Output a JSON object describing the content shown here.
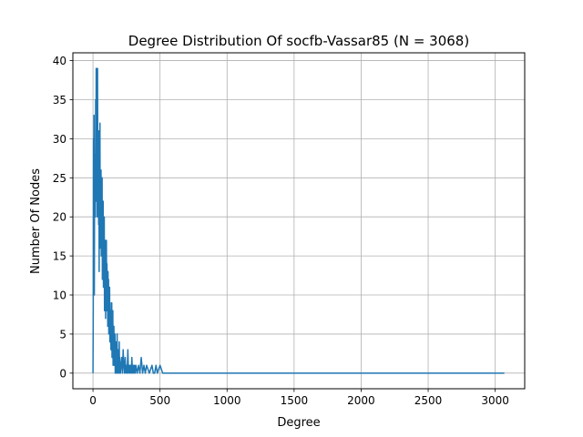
{
  "chart_data": {
    "type": "line",
    "title": "Degree Distribution Of socfb-Vassar85 (N = 3068)",
    "xlabel": "Degree",
    "ylabel": "Number Of Nodes",
    "xlim": [
      -150,
      3220
    ],
    "ylim": [
      -2,
      41
    ],
    "xticks": [
      0,
      500,
      1000,
      1500,
      2000,
      2500,
      3000
    ],
    "yticks": [
      0,
      5,
      10,
      15,
      20,
      25,
      30,
      35,
      40
    ],
    "grid": true,
    "line_color": "#1f77b4",
    "series": [
      {
        "x": [
          0,
          2,
          4,
          6,
          8,
          10,
          12,
          14,
          16,
          18,
          20,
          22,
          24,
          26,
          28,
          30,
          32,
          34,
          36,
          38,
          40,
          42,
          44,
          46,
          48,
          50,
          52,
          54,
          56,
          58,
          60,
          62,
          64,
          66,
          68,
          70,
          72,
          74,
          76,
          78,
          80,
          82,
          84,
          86,
          88,
          90,
          92,
          94,
          96,
          98,
          100,
          102,
          104,
          106,
          108,
          110,
          112,
          114,
          116,
          118,
          120,
          122,
          124,
          126,
          128,
          130,
          132,
          134,
          136,
          138,
          140,
          142,
          144,
          146,
          148,
          150,
          152,
          154,
          156,
          158,
          160,
          162,
          164,
          166,
          168,
          170,
          172,
          174,
          176,
          178,
          180,
          182,
          184,
          186,
          188,
          190,
          192,
          194,
          196,
          198,
          200,
          205,
          210,
          215,
          220,
          225,
          230,
          235,
          240,
          245,
          250,
          255,
          260,
          265,
          270,
          275,
          280,
          285,
          290,
          295,
          300,
          305,
          310,
          315,
          320,
          330,
          340,
          350,
          360,
          370,
          380,
          390,
          400,
          420,
          440,
          450,
          460,
          470,
          480,
          500,
          520,
          1000,
          1500,
          2000,
          2500,
          3068
        ],
        "y": [
          0,
          8,
          30,
          20,
          33,
          10,
          25,
          22,
          28,
          20,
          35,
          26,
          39,
          22,
          24,
          36,
          20,
          39,
          27,
          22,
          25,
          19,
          31,
          13,
          28,
          21,
          32,
          16,
          24,
          19,
          26,
          15,
          22,
          18,
          25,
          12,
          20,
          16,
          22,
          11,
          18,
          14,
          20,
          8,
          16,
          12,
          17,
          7,
          15,
          10,
          17,
          8,
          14,
          11,
          12,
          6,
          13,
          9,
          12,
          5,
          10,
          7,
          11,
          4,
          9,
          6,
          8,
          3,
          7,
          5,
          9,
          2,
          6,
          4,
          8,
          1,
          5,
          3,
          6,
          1,
          4,
          3,
          5,
          0,
          3,
          2,
          4,
          0,
          2,
          1,
          5,
          0,
          2,
          1,
          3,
          0,
          2,
          1,
          4,
          0,
          2,
          0,
          1,
          2,
          0,
          3,
          1,
          0,
          2,
          0,
          1,
          0,
          3,
          0,
          1,
          0,
          1,
          0,
          2,
          0,
          1,
          0,
          1,
          0,
          1,
          0,
          1,
          0,
          2,
          0,
          1,
          0,
          1,
          0,
          1,
          0,
          0,
          1,
          0,
          1,
          0,
          0,
          0,
          0,
          0,
          0
        ]
      }
    ]
  }
}
